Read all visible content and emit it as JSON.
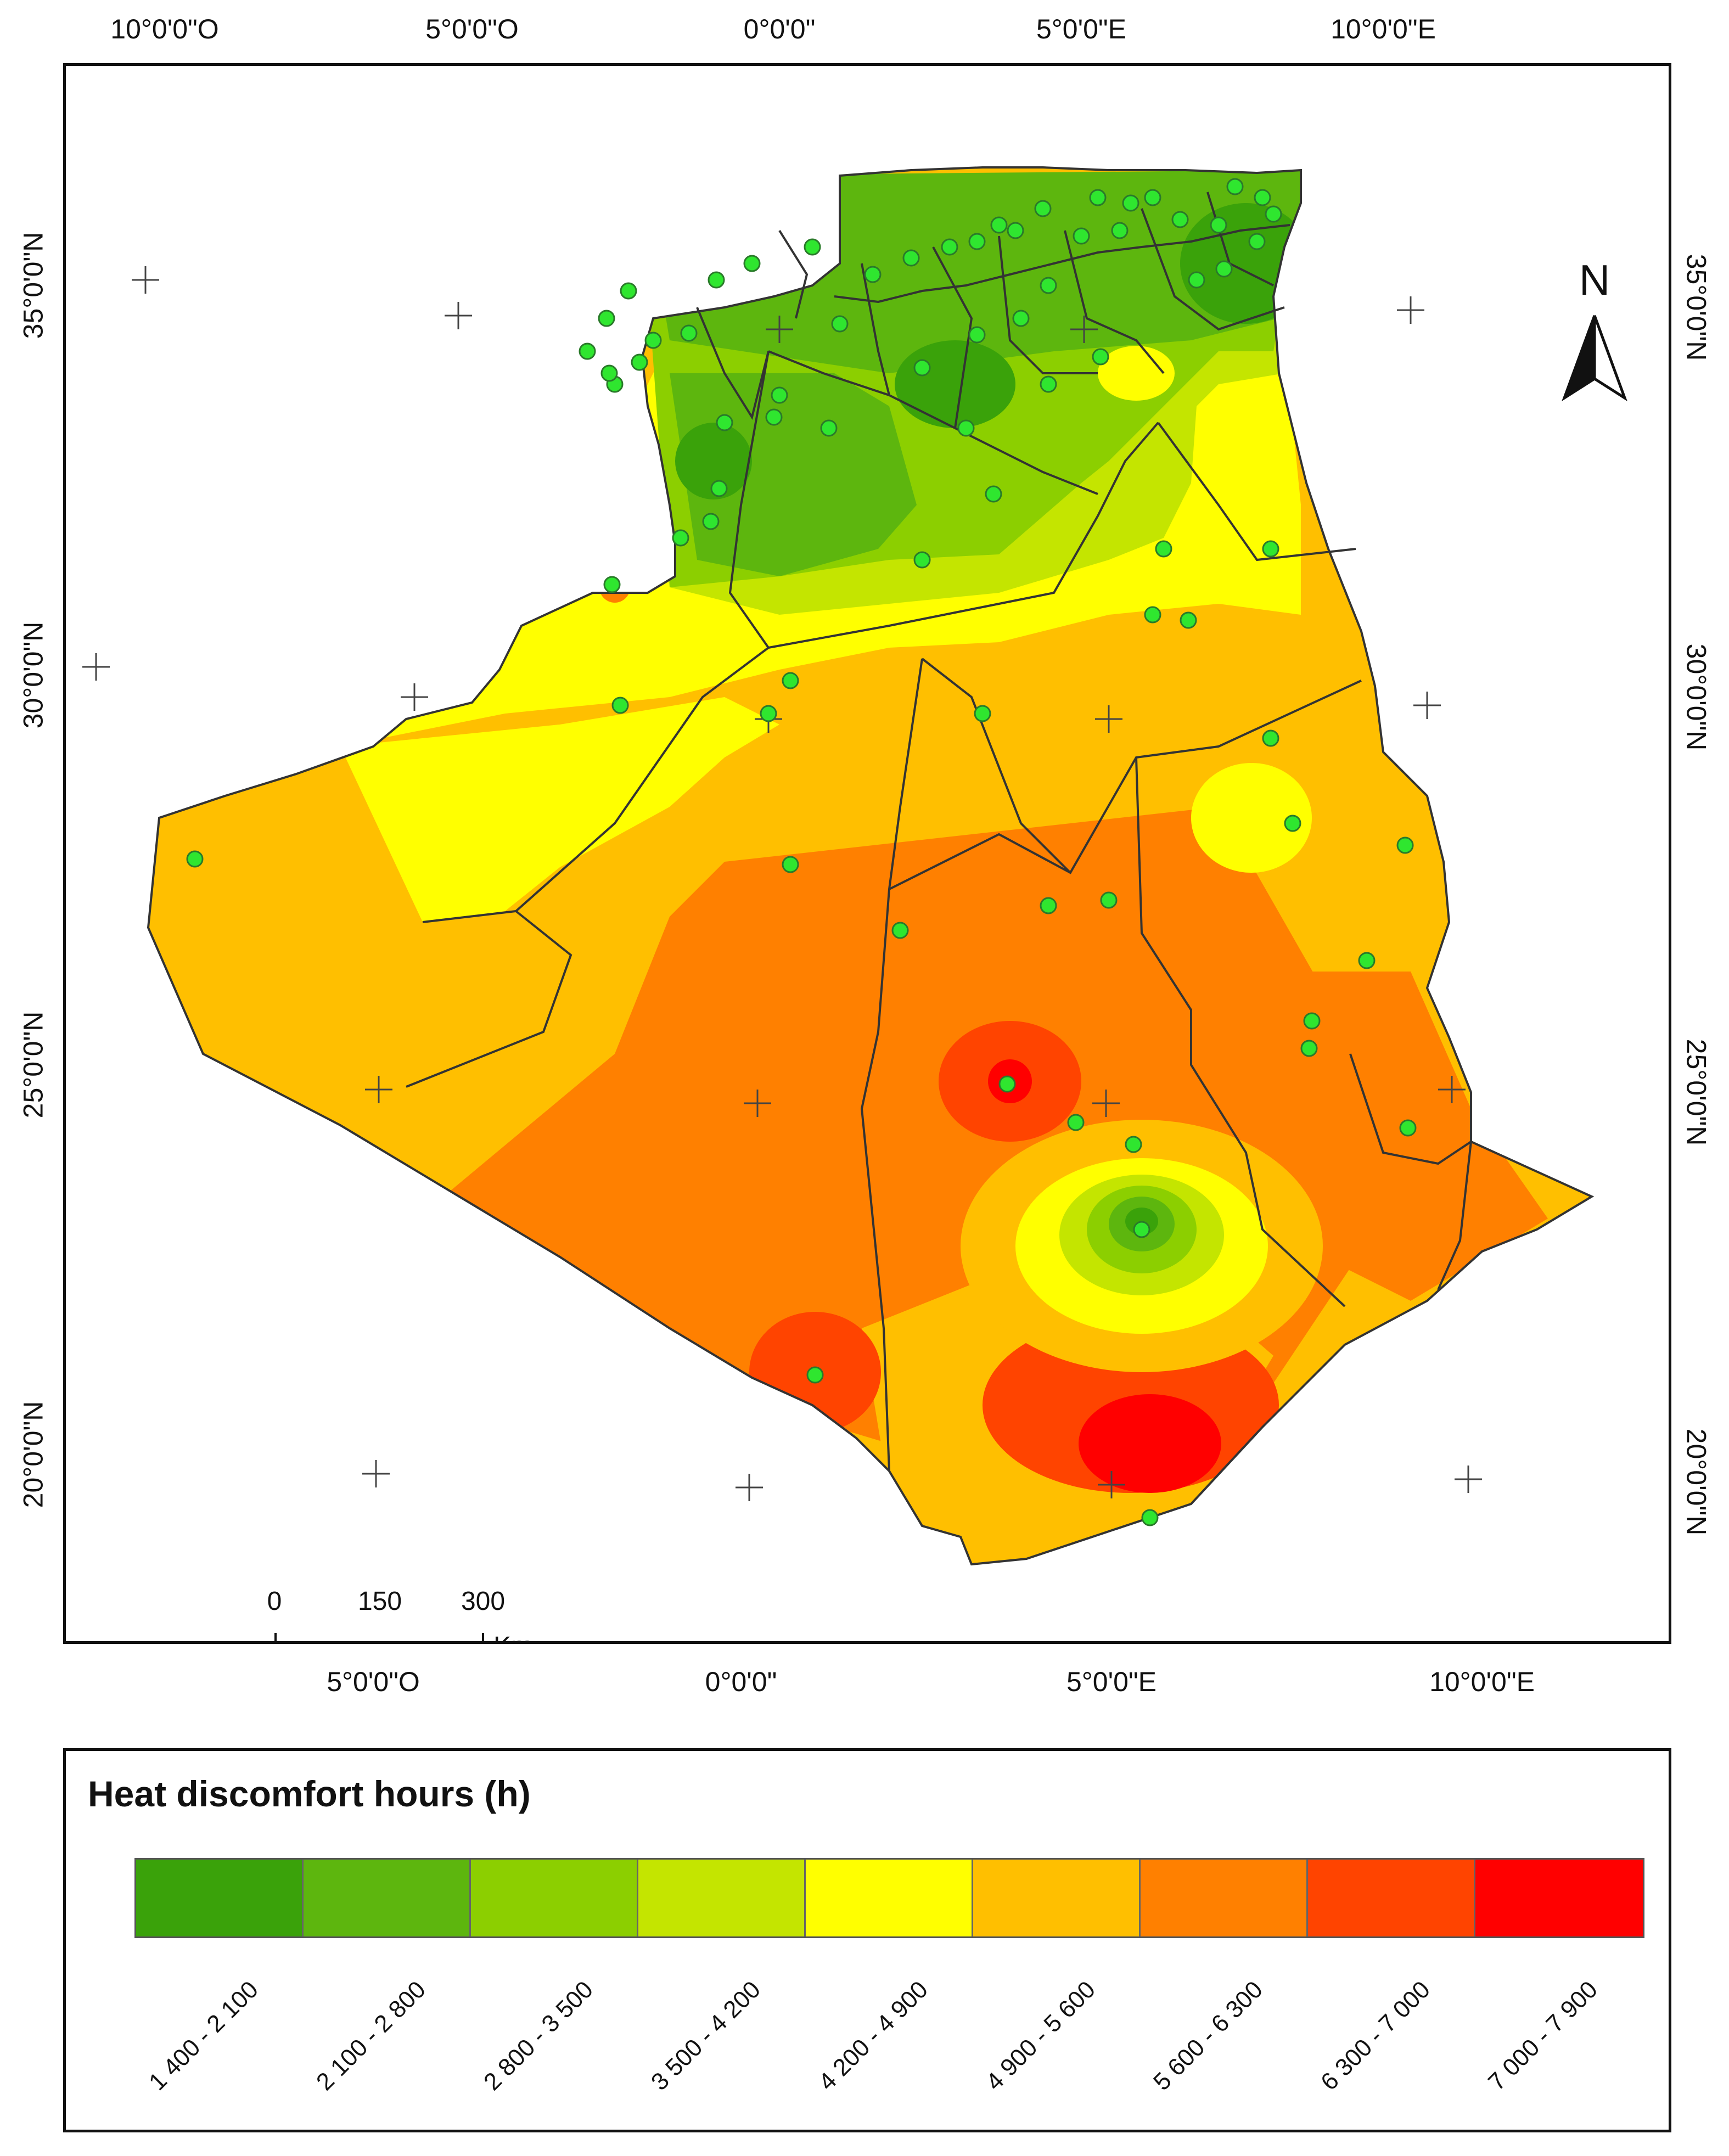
{
  "map": {
    "top_ticks": [
      "10°0'0\"O",
      "5°0'0\"O",
      "0°0'0\"",
      "5°0'0\"E",
      "10°0'0\"E"
    ],
    "bottom_ticks": [
      "5°0'0\"O",
      "0°0'0\"",
      "5°0'0\"E",
      "10°0'0\"E"
    ],
    "left_ticks": [
      "35°0'0\"N",
      "30°0'0\"N",
      "25°0'0\"N",
      "20°0'0\"N"
    ],
    "right_ticks": [
      "35°0'0\"N",
      "30°0'0\"N",
      "25°0'0\"N",
      "20°0'0\"N"
    ],
    "north_arrow": "N",
    "scale": {
      "ticks": [
        "0",
        "150",
        "300"
      ],
      "unit": "Km"
    },
    "station_color": "#2fe62f"
  },
  "legend": {
    "title": "Heat discomfort hours (h)",
    "classes": [
      {
        "label": "1 400 - 2 100",
        "color": "#3aa20a"
      },
      {
        "label": "2 100 - 2 800",
        "color": "#5db60e"
      },
      {
        "label": "2 800 - 3 500",
        "color": "#8ccf00"
      },
      {
        "label": "3 500 - 4 200",
        "color": "#c4e500"
      },
      {
        "label": "4 200 - 4 900",
        "color": "#ffff00"
      },
      {
        "label": "4 900 - 5 600",
        "color": "#ffbf00"
      },
      {
        "label": "5 600 - 6 300",
        "color": "#ff8000"
      },
      {
        "label": "6 300 - 7 000",
        "color": "#ff4400"
      },
      {
        "label": "7 000 - 7 900",
        "color": "#ff0000"
      }
    ]
  }
}
